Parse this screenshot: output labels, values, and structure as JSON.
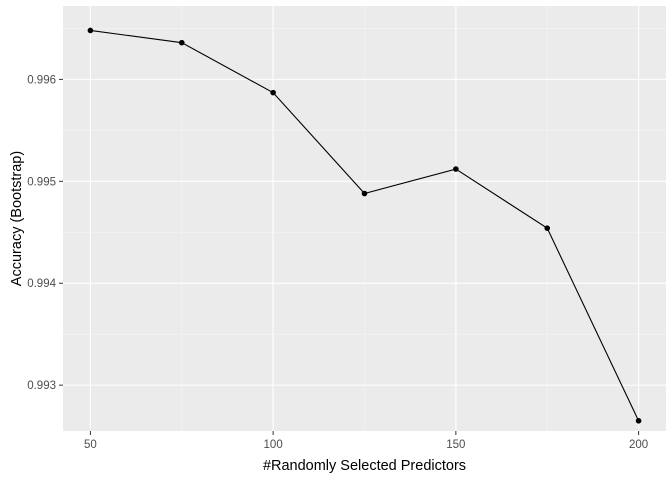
{
  "chart_data": {
    "type": "line",
    "title": "",
    "xlabel": "#Randomly Selected Predictors",
    "ylabel": "Accuracy (Bootstrap)",
    "xlim": [
      42.5,
      207.5
    ],
    "ylim": [
      0.99255,
      0.99672
    ],
    "x_ticks": [
      50,
      100,
      150,
      200
    ],
    "x_tick_labels": [
      "50",
      "100",
      "150",
      "200"
    ],
    "y_ticks": [
      0.993,
      0.994,
      0.995,
      0.996
    ],
    "y_tick_labels": [
      "0.993",
      "0.994",
      "0.995",
      "0.996"
    ],
    "grid": true,
    "legend": "none",
    "series": [
      {
        "x": [
          50,
          75,
          100,
          125,
          150,
          175,
          200
        ],
        "values": [
          0.99648,
          0.99636,
          0.99587,
          0.99488,
          0.99512,
          0.99454,
          0.99265
        ]
      }
    ],
    "colors": {
      "panel_background": "#ebebeb",
      "grid_major": "#ffffff",
      "grid_minor": "#f5f5f5",
      "line": "#000000",
      "point": "#000000",
      "tick_label": "#4d4d4d",
      "tick_mark": "#333333"
    }
  }
}
